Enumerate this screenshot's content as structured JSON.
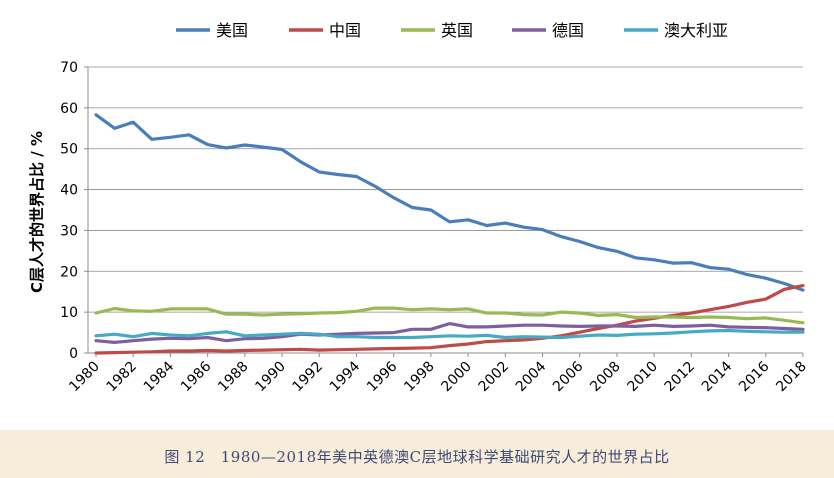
{
  "caption": "图 12　1980—2018年美中英德澳C层地球科学基础研究人才的世界占比",
  "chart_data": {
    "type": "line",
    "title": "",
    "xlabel": "",
    "ylabel": "C层人才的世界占比 / %",
    "xlim": [
      1980,
      2018
    ],
    "ylim": [
      0,
      70
    ],
    "yticks": [
      0,
      10,
      20,
      30,
      40,
      50,
      60,
      70
    ],
    "xticks": [
      1980,
      1982,
      1984,
      1986,
      1988,
      1990,
      1992,
      1994,
      1996,
      1998,
      2000,
      2002,
      2004,
      2006,
      2008,
      2010,
      2012,
      2014,
      2016,
      2018
    ],
    "grid": "horizontal",
    "legend_position": "top",
    "x": [
      1980,
      1981,
      1982,
      1983,
      1984,
      1985,
      1986,
      1987,
      1988,
      1989,
      1990,
      1991,
      1992,
      1993,
      1994,
      1995,
      1996,
      1997,
      1998,
      1999,
      2000,
      2001,
      2002,
      2003,
      2004,
      2005,
      2006,
      2007,
      2008,
      2009,
      2010,
      2011,
      2012,
      2013,
      2014,
      2015,
      2016,
      2017,
      2018
    ],
    "series": [
      {
        "name": "美国",
        "color": "#4a7ebb",
        "values": [
          58.3,
          55.0,
          56.5,
          52.3,
          52.8,
          53.4,
          51.0,
          50.2,
          50.9,
          50.4,
          49.8,
          46.8,
          44.3,
          43.7,
          43.2,
          40.8,
          38.0,
          35.6,
          35.0,
          32.1,
          32.6,
          31.2,
          31.8,
          30.8,
          30.2,
          28.5,
          27.3,
          25.8,
          24.9,
          23.3,
          22.8,
          22.0,
          22.1,
          20.9,
          20.5,
          19.2,
          18.3,
          17.0,
          15.4
        ]
      },
      {
        "name": "中国",
        "color": "#be4b48",
        "values": [
          0.0,
          0.1,
          0.2,
          0.3,
          0.5,
          0.5,
          0.6,
          0.5,
          0.6,
          0.7,
          0.8,
          0.9,
          0.7,
          0.8,
          0.9,
          1.0,
          1.1,
          1.2,
          1.3,
          1.8,
          2.2,
          2.8,
          3.0,
          3.2,
          3.6,
          4.2,
          5.1,
          6.0,
          6.8,
          7.8,
          8.5,
          9.2,
          9.8,
          10.6,
          11.4,
          12.4,
          13.2,
          15.6,
          16.5
        ]
      },
      {
        "name": "英国",
        "color": "#98b954",
        "values": [
          9.8,
          10.9,
          10.3,
          10.2,
          10.8,
          10.8,
          10.8,
          9.5,
          9.5,
          9.3,
          9.5,
          9.6,
          9.8,
          9.9,
          10.2,
          11.0,
          11.0,
          10.6,
          10.8,
          10.6,
          10.8,
          9.8,
          9.8,
          9.4,
          9.3,
          10.0,
          9.8,
          9.2,
          9.4,
          8.7,
          8.8,
          8.8,
          8.7,
          8.8,
          8.7,
          8.4,
          8.6,
          8.0,
          7.4
        ]
      },
      {
        "name": "德国",
        "color": "#7d5fa0",
        "values": [
          3.0,
          2.6,
          3.0,
          3.4,
          3.6,
          3.5,
          3.8,
          3.0,
          3.5,
          3.6,
          4.0,
          4.6,
          4.4,
          4.6,
          4.8,
          4.9,
          5.0,
          5.8,
          5.8,
          7.2,
          6.4,
          6.4,
          6.6,
          6.8,
          6.8,
          6.6,
          6.5,
          6.6,
          6.6,
          6.5,
          6.8,
          6.5,
          6.6,
          6.8,
          6.4,
          6.3,
          6.2,
          6.0,
          5.8
        ]
      },
      {
        "name": "澳大利亚",
        "color": "#46aac5",
        "values": [
          4.2,
          4.6,
          4.0,
          4.8,
          4.4,
          4.2,
          4.8,
          5.2,
          4.2,
          4.4,
          4.6,
          4.8,
          4.6,
          4.0,
          4.0,
          3.8,
          3.8,
          3.8,
          4.0,
          4.2,
          4.1,
          4.3,
          3.8,
          4.0,
          3.9,
          3.8,
          4.1,
          4.4,
          4.3,
          4.6,
          4.7,
          4.9,
          5.2,
          5.4,
          5.5,
          5.3,
          5.2,
          5.1,
          5.1
        ]
      }
    ]
  }
}
